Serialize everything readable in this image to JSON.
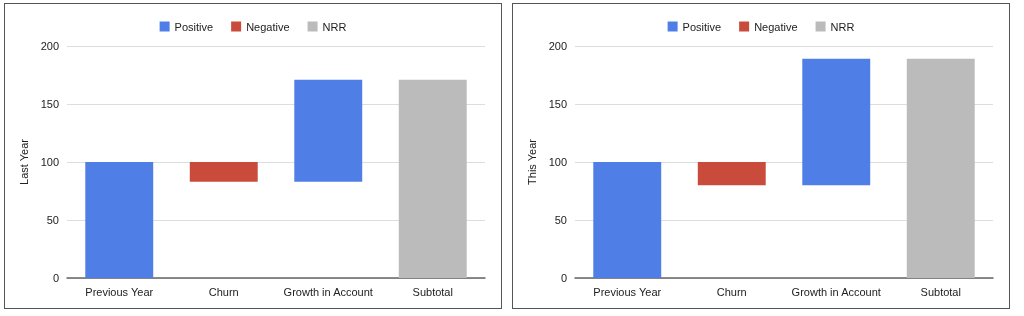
{
  "chart_data": [
    {
      "type": "bar",
      "ylabel": "Last Year",
      "categories": [
        "Previous Year",
        "Churn",
        "Growth in Account",
        "Subtotal"
      ],
      "series": [
        {
          "name": "Positive",
          "color": "#4f7fe6",
          "values": [
            100,
            null,
            88,
            null
          ],
          "base": [
            0,
            null,
            83,
            null
          ]
        },
        {
          "name": "Negative",
          "color": "#c94b3b",
          "values": [
            null,
            -17,
            null,
            null
          ],
          "base": [
            null,
            100,
            null,
            null
          ]
        },
        {
          "name": "NRR",
          "color": "#bbbbbb",
          "values": [
            null,
            null,
            null,
            171
          ],
          "base": [
            null,
            null,
            null,
            0
          ]
        }
      ],
      "ylim": [
        0,
        200
      ],
      "yticks": [
        0,
        50,
        100,
        150,
        200
      ],
      "grid": "y",
      "legend": "top"
    },
    {
      "type": "bar",
      "ylabel": "This Year",
      "categories": [
        "Previous Year",
        "Churn",
        "Growth in Account",
        "Subtotal"
      ],
      "series": [
        {
          "name": "Positive",
          "color": "#4f7fe6",
          "values": [
            100,
            null,
            109,
            null
          ],
          "base": [
            0,
            null,
            80,
            null
          ]
        },
        {
          "name": "Negative",
          "color": "#c94b3b",
          "values": [
            null,
            -20,
            null,
            null
          ],
          "base": [
            null,
            100,
            null,
            null
          ]
        },
        {
          "name": "NRR",
          "color": "#bbbbbb",
          "values": [
            null,
            null,
            null,
            189
          ],
          "base": [
            null,
            null,
            null,
            0
          ]
        }
      ],
      "ylim": [
        0,
        200
      ],
      "yticks": [
        0,
        50,
        100,
        150,
        200
      ],
      "grid": "y",
      "legend": "top"
    }
  ]
}
